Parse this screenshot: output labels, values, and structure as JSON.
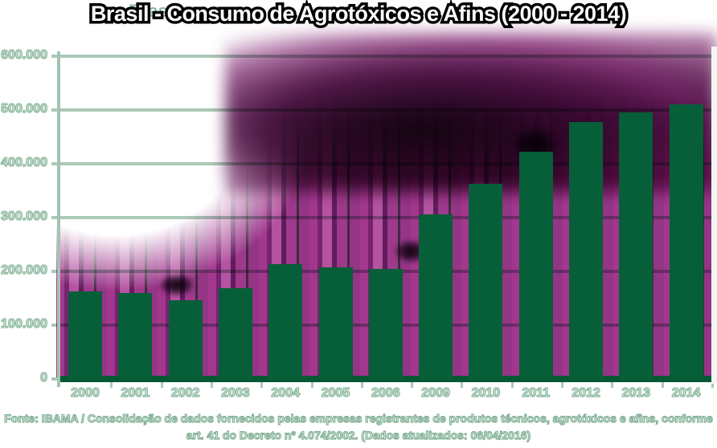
{
  "title": "Brasil - Consumo de Agrotóxicos e Afins (2000 - 2014)",
  "ghost_text": "Bras",
  "footer": {
    "line1": "Fonte: IBAMA / Consolidação de dados fornecidos pelas empresas registrantes de produtos técnicos, agrotóxicos e afins, conforme",
    "line2": "art. 41 do Decreto nº 4.074/2002. (Dados atualizados:  06/04/2016)"
  },
  "chart_data": {
    "type": "bar",
    "title": "Brasil - Consumo de Agrotóxicos e Afins (2000 - 2014)",
    "categories": [
      "2000",
      "2001",
      "2002",
      "2003",
      "2004",
      "2005",
      "2006",
      "2009",
      "2010",
      "2011",
      "2012",
      "2013",
      "2014"
    ],
    "values": [
      162000,
      159000,
      147000,
      169000,
      213000,
      207000,
      205000,
      306000,
      363000,
      423000,
      477000,
      496000,
      511000
    ],
    "y_ticks": [
      "600.000",
      "500.000",
      "400.000",
      "300.000",
      "200.000",
      "100.000",
      "0"
    ],
    "ylim": [
      0,
      600000
    ],
    "xlabel": "",
    "ylabel": "",
    "grid": true,
    "legend": "none",
    "colors": {
      "bar": "#065f38",
      "gridline": "#abc9b8",
      "axis_label": "#8ab79d",
      "title_fill": "#ffffff",
      "title_outline": "#000000",
      "smear_magenta": "#9e2c88",
      "ghost_teal": "#83b8a4"
    }
  }
}
